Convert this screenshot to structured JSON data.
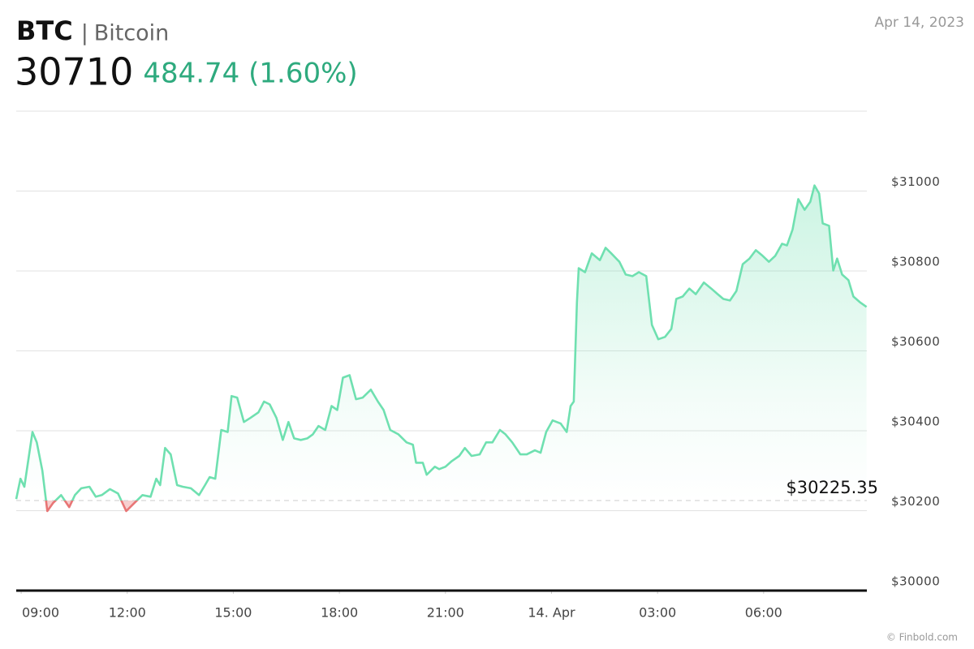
{
  "header": {
    "symbol": "BTC",
    "name": "Bitcoin",
    "price": 30710,
    "change": "484.74 (1.60%)",
    "date": "Apr 14, 2023"
  },
  "source": "© Finbold.com",
  "chart_data": {
    "type": "line",
    "x": [
      8.86,
      8.98,
      9.09,
      9.32,
      9.44,
      9.6,
      9.74,
      9.9,
      10.13,
      10.36,
      10.52,
      10.7,
      10.93,
      11.11,
      11.28,
      11.51,
      11.74,
      11.97,
      12.2,
      12.43,
      12.66,
      12.82,
      12.93,
      13.07,
      13.23,
      13.41,
      13.57,
      13.8,
      14.03,
      14.2,
      14.33,
      14.49,
      14.66,
      14.84,
      14.95,
      15.11,
      15.3,
      15.48,
      15.71,
      15.87,
      16.03,
      16.22,
      16.4,
      16.56,
      16.72,
      16.91,
      17.09,
      17.25,
      17.41,
      17.6,
      17.78,
      17.94,
      18.1,
      18.29,
      18.47,
      18.66,
      18.89,
      19.09,
      19.25,
      19.44,
      19.67,
      19.9,
      20.08,
      20.17,
      20.36,
      20.47,
      20.7,
      20.82,
      21.0,
      21.18,
      21.39,
      21.55,
      21.74,
      21.97,
      22.15,
      22.33,
      22.54,
      22.7,
      22.89,
      23.12,
      23.3,
      23.53,
      23.69,
      23.85,
      24.03,
      24.26,
      24.43,
      24.54,
      24.63,
      24.72,
      24.77,
      24.95,
      25.14,
      25.37,
      25.53,
      25.69,
      25.92,
      26.1,
      26.29,
      26.47,
      26.68,
      26.84,
      27.02,
      27.21,
      27.39,
      27.53,
      27.71,
      27.9,
      28.08,
      28.31,
      28.52,
      28.7,
      28.86,
      29.05,
      29.23,
      29.41,
      29.6,
      29.78,
      29.97,
      30.15,
      30.33,
      30.52,
      30.66,
      30.82,
      30.98,
      31.16,
      31.32,
      31.44,
      31.57,
      31.67,
      31.85,
      31.97,
      32.08,
      32.22,
      32.4,
      32.54,
      32.72,
      32.91
    ],
    "values": [
      30229,
      30280,
      30260,
      30397,
      30371,
      30300,
      30199,
      30219,
      30239,
      30209,
      30239,
      30256,
      30260,
      30235,
      30239,
      30254,
      30243,
      30199,
      30219,
      30239,
      30235,
      30280,
      30264,
      30357,
      30341,
      30264,
      30260,
      30256,
      30239,
      30264,
      30284,
      30280,
      30402,
      30397,
      30487,
      30483,
      30422,
      30432,
      30446,
      30473,
      30466,
      30432,
      30377,
      30422,
      30381,
      30377,
      30381,
      30391,
      30412,
      30402,
      30462,
      30452,
      30533,
      30539,
      30479,
      30483,
      30503,
      30473,
      30452,
      30402,
      30391,
      30371,
      30365,
      30320,
      30320,
      30290,
      30310,
      30304,
      30310,
      30324,
      30337,
      30357,
      30337,
      30341,
      30371,
      30371,
      30402,
      30391,
      30371,
      30341,
      30341,
      30351,
      30345,
      30397,
      30426,
      30418,
      30397,
      30462,
      30473,
      30722,
      30807,
      30797,
      30844,
      30827,
      30858,
      30844,
      30823,
      30791,
      30787,
      30797,
      30787,
      30665,
      30629,
      30635,
      30655,
      30730,
      30736,
      30756,
      30742,
      30771,
      30756,
      30742,
      30730,
      30726,
      30750,
      30817,
      30831,
      30852,
      30838,
      30823,
      30838,
      30868,
      30864,
      30904,
      30980,
      30953,
      30973,
      31014,
      30994,
      30919,
      30913,
      30801,
      30831,
      30791,
      30777,
      30736,
      30722,
      30710
    ],
    "color": "#6fe0b0",
    "down_color": "#e87575",
    "xlim": [
      8.86,
      32.92
    ],
    "xticks": [
      {
        "value": 9,
        "label": "09:00"
      },
      {
        "value": 12,
        "label": "12:00"
      },
      {
        "value": 15,
        "label": "15:00"
      },
      {
        "value": 18,
        "label": "18:00"
      },
      {
        "value": 21,
        "label": "21:00"
      },
      {
        "value": 24,
        "label": "14. Apr"
      },
      {
        "value": 27,
        "label": "03:00"
      },
      {
        "value": 30,
        "label": "06:00"
      }
    ],
    "ylim": [
      30000,
      31200
    ],
    "yticks": [
      {
        "value": 30000,
        "label": "$30000"
      },
      {
        "value": 30200,
        "label": "$30200"
      },
      {
        "value": 30400,
        "label": "$30400"
      },
      {
        "value": 30600,
        "label": "$30600"
      },
      {
        "value": 30800,
        "label": "$30800"
      },
      {
        "value": 31000,
        "label": "$31000"
      }
    ],
    "reference": {
      "value": 30225.35,
      "label": "$30225.35"
    },
    "grid": true
  }
}
